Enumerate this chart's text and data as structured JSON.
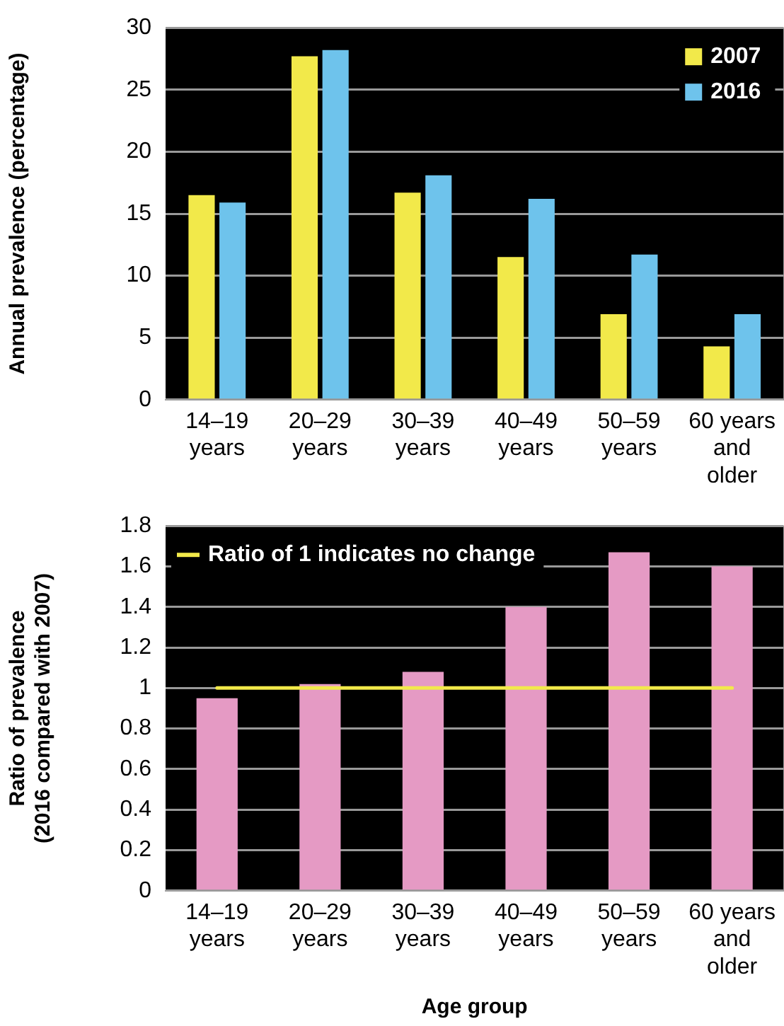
{
  "chart_data": [
    {
      "type": "bar",
      "ylabel": "Annual prevalence (percentage)",
      "categories": [
        "14–19 years",
        "20–29 years",
        "30–39 years",
        "40–49 years",
        "50–59 years",
        "60 years and older"
      ],
      "series": [
        {
          "name": "2007",
          "color": "#f2e94a",
          "values": [
            16.5,
            27.7,
            16.7,
            11.5,
            6.9,
            4.3
          ]
        },
        {
          "name": "2016",
          "color": "#6ec3ec",
          "values": [
            15.9,
            28.2,
            18.1,
            16.2,
            11.7,
            6.9
          ]
        }
      ],
      "ylim": [
        0,
        30
      ],
      "yticks": [
        0,
        5,
        10,
        15,
        20,
        25,
        30
      ],
      "grid": "y",
      "legend": "top right"
    },
    {
      "type": "bar",
      "ylabel": "Ratio of prevalence\n(2016 compared with 2007)",
      "xlabel": "Age group",
      "categories": [
        "14–19 years",
        "20–29 years",
        "30–39 years",
        "40–49 years",
        "50–59 years",
        "60 years and older"
      ],
      "values": [
        0.95,
        1.02,
        1.08,
        1.4,
        1.67,
        1.6
      ],
      "color": "#e59ac4",
      "ref_lines": [
        {
          "axis": "y",
          "value": 1,
          "label": "Ratio of 1 indicates no change",
          "color": "#f2e94a"
        }
      ],
      "ylim": [
        0,
        1.8
      ],
      "yticks": [
        0,
        0.2,
        0.4,
        0.6,
        0.8,
        1,
        1.2,
        1.4,
        1.6,
        1.8
      ],
      "grid": "y",
      "legend": "top left"
    }
  ]
}
